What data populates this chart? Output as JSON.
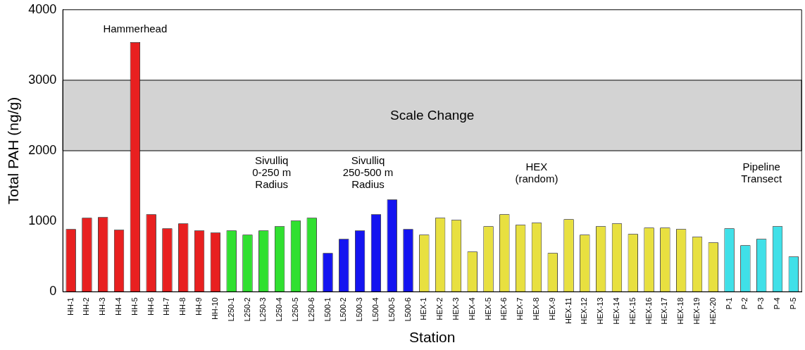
{
  "chart_data": {
    "type": "bar",
    "xlabel": "Station",
    "ylabel": "Total PAH (ng/g)",
    "categories": [
      "HH-1",
      "HH-2",
      "HH-3",
      "HH-4",
      "HH-5",
      "HH-6",
      "HH-7",
      "HH-8",
      "HH-9",
      "HH-10",
      "L250-1",
      "L250-2",
      "L250-3",
      "L250-4",
      "L250-5",
      "L250-6",
      "L500-1",
      "L500-2",
      "L500-3",
      "L500-4",
      "L500-5",
      "L500-6",
      "HEX-1",
      "HEX-2",
      "HEX-3",
      "HEX-4",
      "HEX-5",
      "HEX-6",
      "HEX-7",
      "HEX-8",
      "HEX-9",
      "HEX-11",
      "HEX-12",
      "HEX-13",
      "HEX-14",
      "HEX-15",
      "HEX-16",
      "HEX-17",
      "HEX-18",
      "HEX-19",
      "HEX-20",
      "P-1",
      "P-2",
      "P-3",
      "P-4",
      "P-5"
    ],
    "values": [
      890,
      1050,
      1060,
      880,
      3540,
      1100,
      900,
      970,
      870,
      840,
      870,
      810,
      870,
      930,
      1010,
      1050,
      550,
      750,
      870,
      1100,
      1310,
      890,
      810,
      1050,
      1020,
      570,
      930,
      1100,
      950,
      980,
      550,
      1030,
      810,
      930,
      970,
      820,
      910,
      910,
      890,
      780,
      700,
      900,
      660,
      750,
      930,
      500
    ],
    "colors": [
      "#e82020",
      "#e82020",
      "#e82020",
      "#e82020",
      "#e82020",
      "#e82020",
      "#e82020",
      "#e82020",
      "#e82020",
      "#e82020",
      "#30e030",
      "#30e030",
      "#30e030",
      "#30e030",
      "#30e030",
      "#30e030",
      "#1414f0",
      "#1414f0",
      "#1414f0",
      "#1414f0",
      "#1414f0",
      "#1414f0",
      "#e8e040",
      "#e8e040",
      "#e8e040",
      "#e8e040",
      "#e8e040",
      "#e8e040",
      "#e8e040",
      "#e8e040",
      "#e8e040",
      "#e8e040",
      "#e8e040",
      "#e8e040",
      "#e8e040",
      "#e8e040",
      "#e8e040",
      "#e8e040",
      "#e8e040",
      "#e8e040",
      "#e8e040",
      "#40e0e8",
      "#40e0e8",
      "#40e0e8",
      "#40e0e8",
      "#40e0e8"
    ],
    "ylim": [
      0,
      4000
    ],
    "yticks": [
      0,
      1000,
      2000,
      3000,
      4000
    ],
    "grid": false,
    "legend": false,
    "bands": [
      {
        "axis": "y",
        "from": 2000,
        "to": 3000,
        "label": "Scale Change",
        "color": "#d3d3d3"
      }
    ],
    "annotations": [
      "Hammerhead",
      "Sivulliq\n0-250 m\nRadius",
      "Sivulliq\n250-500 m\nRadius",
      "HEX\n(random)",
      "Pipeline\nTransect"
    ]
  }
}
